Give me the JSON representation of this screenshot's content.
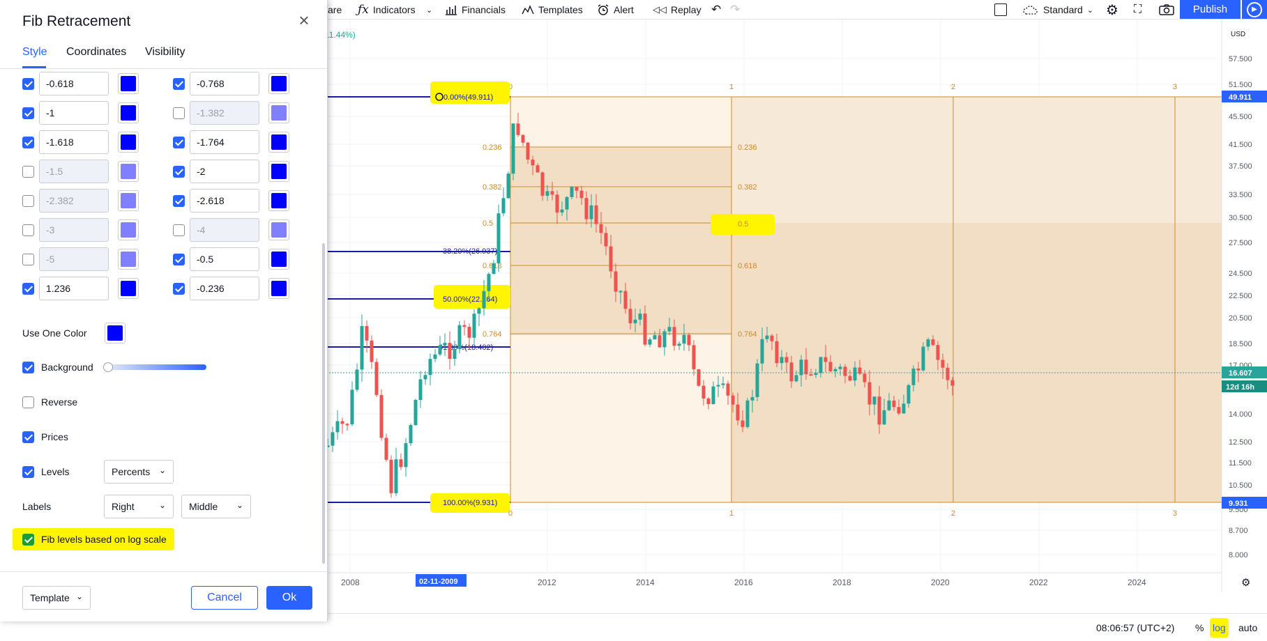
{
  "toolbar": {
    "compare_fragment": "are",
    "indicators": "Indicators",
    "financials": "Financials",
    "templates": "Templates",
    "alert": "Alert",
    "replay": "Replay",
    "chart_style": "Standard",
    "publish": "Publish",
    "icons": [
      "fx-icon",
      "chevron-down-icon",
      "bar-chart-icon",
      "templates-icon",
      "alarm-clock-icon",
      "replay-icon",
      "undo-icon",
      "redo-icon",
      "square-icon",
      "cloud-icon",
      "gear-icon",
      "fullscreen-icon",
      "camera-icon",
      "play-icon"
    ]
  },
  "chart": {
    "change_label": "11.44%)",
    "currency": "USD",
    "price_scale": [
      "57.500",
      "51.500",
      "45.500",
      "41.500",
      "37.500",
      "33.500",
      "30.500",
      "27.500",
      "24.500",
      "22.500",
      "20.500",
      "18.500",
      "17.000",
      "14.000",
      "12.500",
      "11.500",
      "10.500",
      "9.500",
      "8.700",
      "8.000"
    ],
    "price_tags": {
      "top": "49.911",
      "current": "16.607",
      "countdown": "12d 16h",
      "bottom": "9.931"
    },
    "time_scale": [
      "2008",
      "2012",
      "2014",
      "2016",
      "2018",
      "2020",
      "2022",
      "2024"
    ],
    "time_highlight": "02-11-2009",
    "fib_left_labels": [
      "0.00%(49.911)",
      "38.20%(26.937)",
      "50.00%(22.264)",
      "61.80%(18.402)",
      "100.00%(9.931)"
    ],
    "fib_inner_levels": [
      "0.236",
      "0.382",
      "0.5",
      "0.618",
      "0.764"
    ],
    "fib_time_zones": [
      "0",
      "1",
      "2",
      "3"
    ],
    "bottom_bar": {
      "time": "08:06:57 (UTC+2)",
      "percent": "%",
      "log": "log",
      "auto": "auto"
    }
  },
  "dialog": {
    "title": "Fib Retracement",
    "tabs": [
      "Style",
      "Coordinates",
      "Visibility"
    ],
    "levels_left": [
      {
        "value": "-0.618",
        "checked": true
      },
      {
        "value": "-1",
        "checked": true
      },
      {
        "value": "-1.618",
        "checked": true
      },
      {
        "value": "-1.5",
        "checked": false
      },
      {
        "value": "-2.382",
        "checked": false
      },
      {
        "value": "-3",
        "checked": false
      },
      {
        "value": "-5",
        "checked": false
      },
      {
        "value": "1.236",
        "checked": true
      }
    ],
    "levels_right": [
      {
        "value": "-0.768",
        "checked": true
      },
      {
        "value": "-1.382",
        "checked": false
      },
      {
        "value": "-1.764",
        "checked": true
      },
      {
        "value": "-2",
        "checked": true
      },
      {
        "value": "-2.618",
        "checked": true
      },
      {
        "value": "-4",
        "checked": false
      },
      {
        "value": "-0.5",
        "checked": true
      },
      {
        "value": "-0.236",
        "checked": true
      }
    ],
    "use_one_color": "Use One Color",
    "background": "Background",
    "reverse": "Reverse",
    "prices": "Prices",
    "levels": "Levels",
    "levels_select": "Percents",
    "labels": "Labels",
    "labels_h": "Right",
    "labels_v": "Middle",
    "log_scale": "Fib levels based on log scale",
    "template": "Template",
    "cancel": "Cancel",
    "ok": "Ok",
    "colors": {
      "level": "#0000ff",
      "level_off": "#8080ff",
      "accent": "#2962ff"
    }
  }
}
